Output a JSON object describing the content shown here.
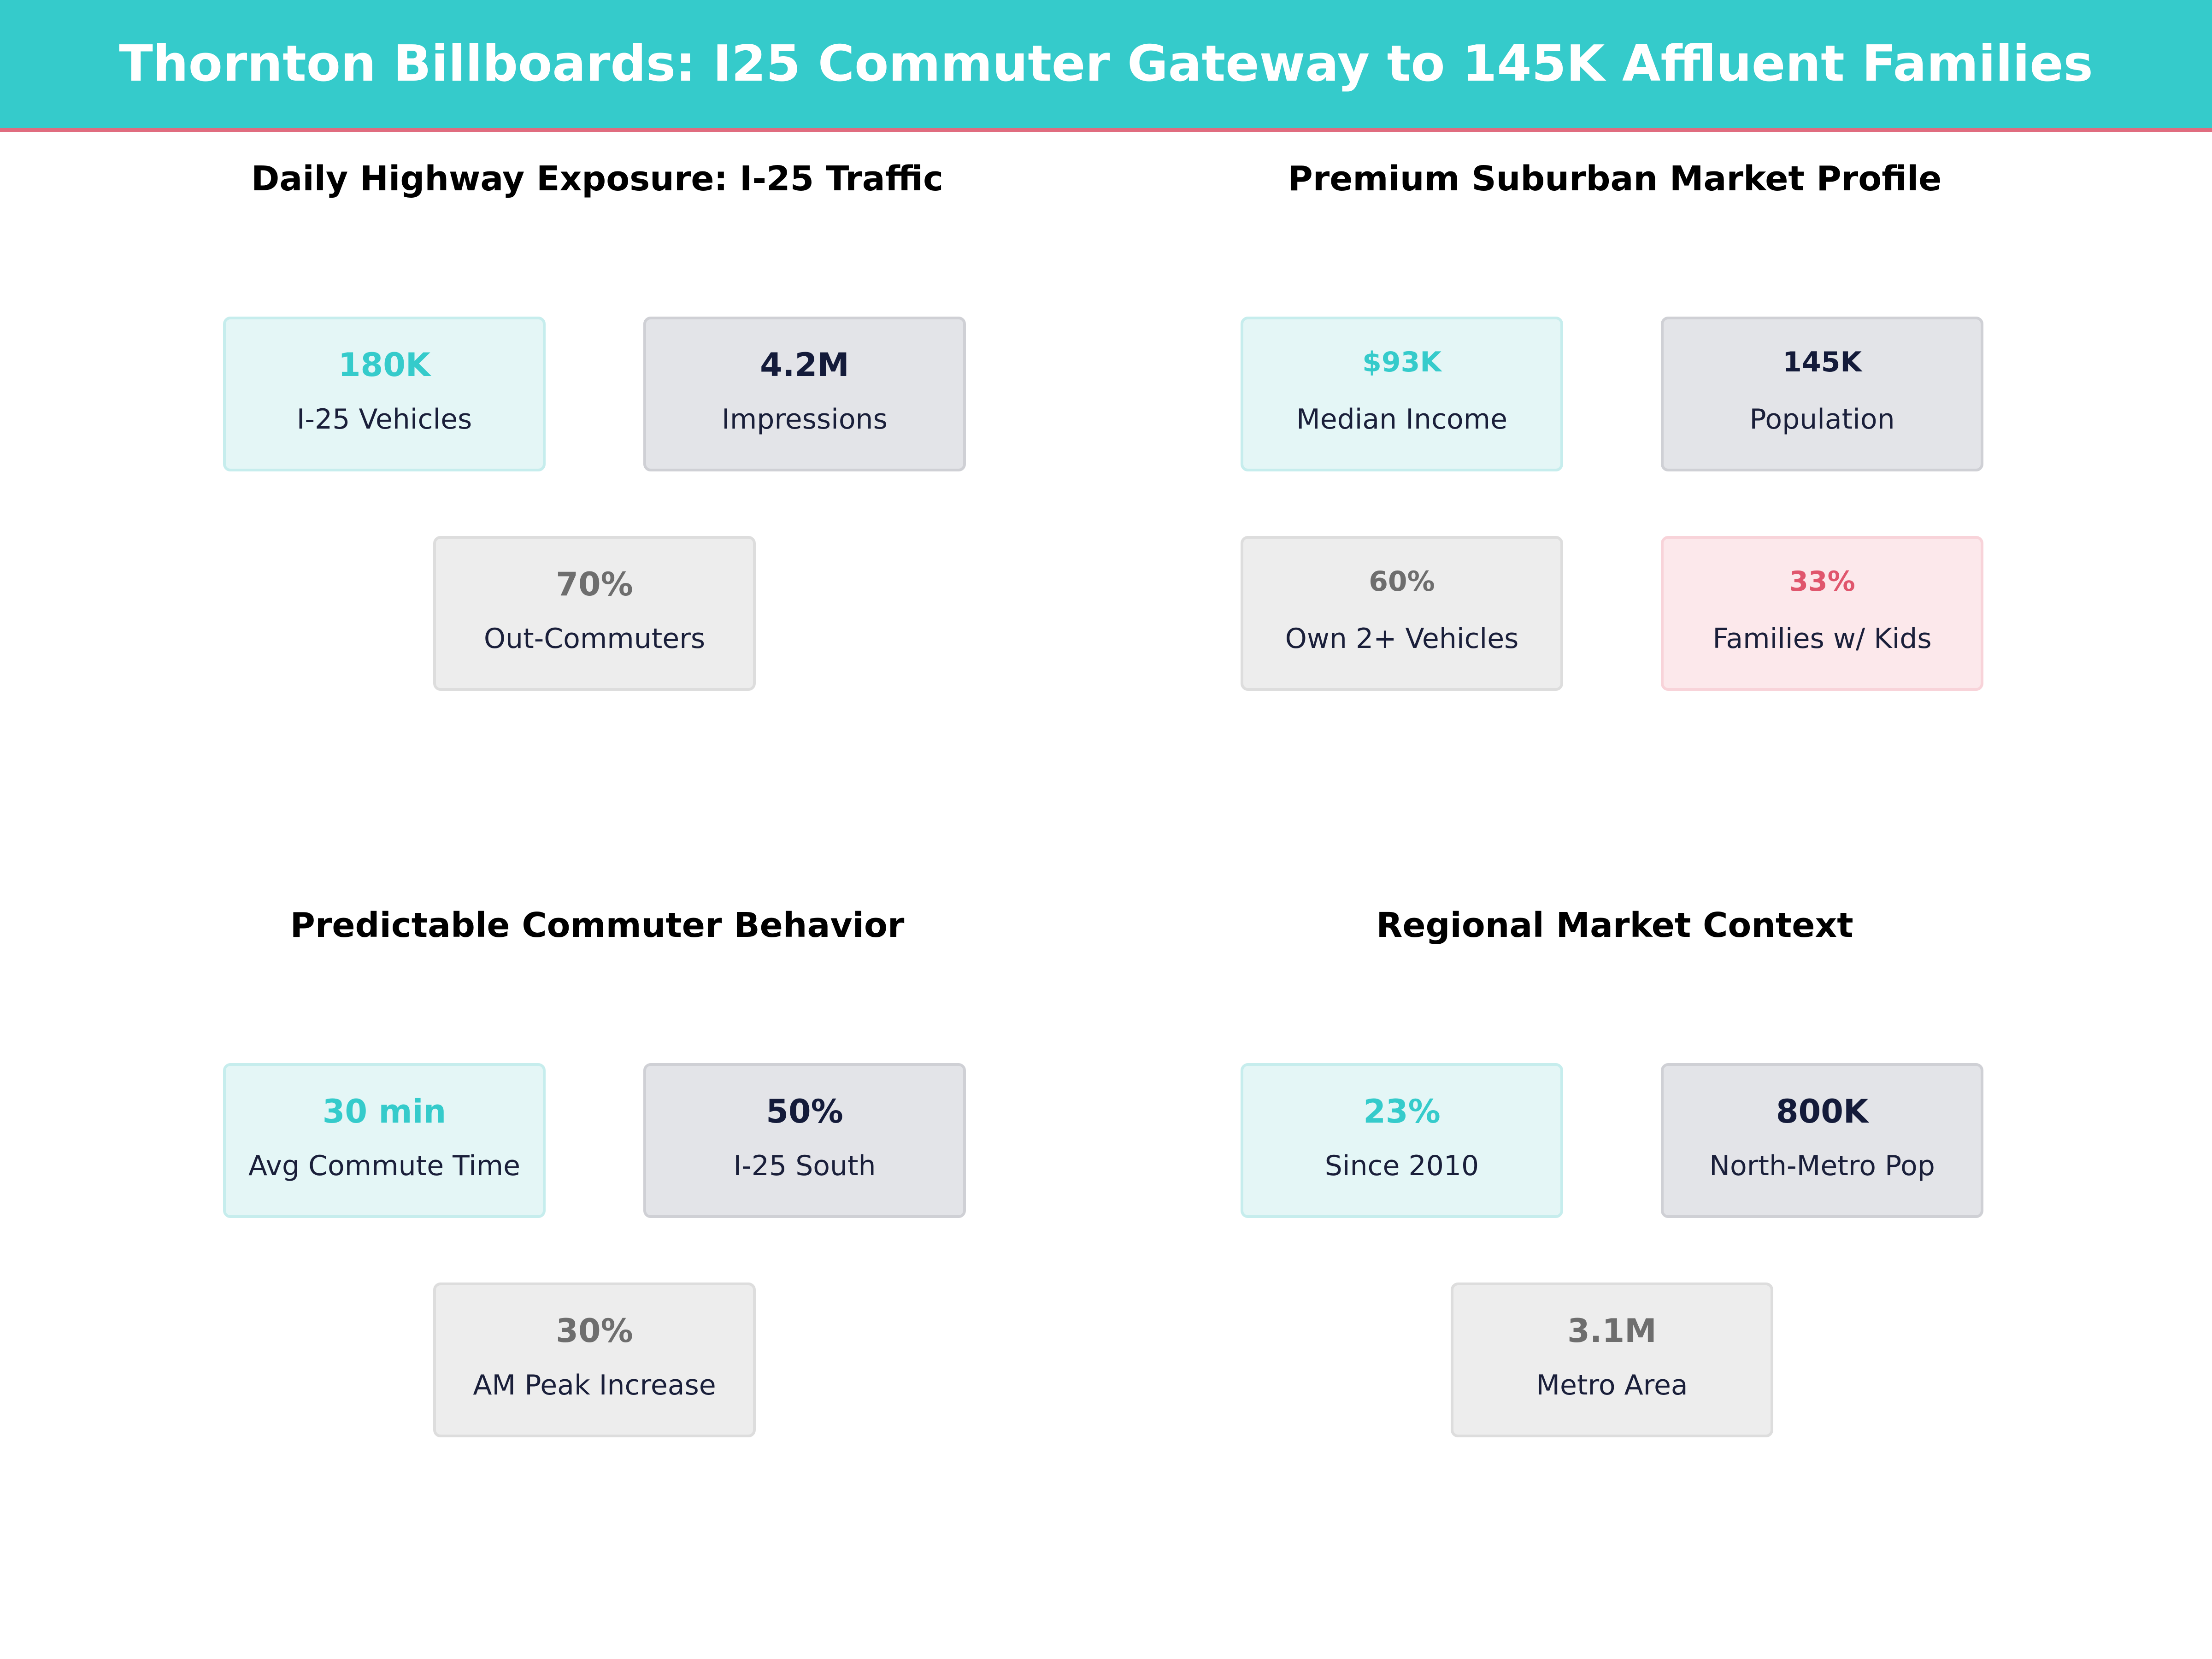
{
  "header": {
    "title": "Thornton Billboards: I25 Commuter Gateway to 145K Affluent Families"
  },
  "panels": {
    "traffic": {
      "title": "Daily Highway Exposure: I-25 Traffic",
      "cards": [
        {
          "value": "180K",
          "label": "I-25 Vehicles"
        },
        {
          "value": "4.2M",
          "label": "Impressions"
        },
        {
          "value": "70%",
          "label": "Out-Commuters"
        }
      ]
    },
    "market": {
      "title": "Premium Suburban Market Profile",
      "cards": [
        {
          "value": "$93K",
          "label": "Median Income"
        },
        {
          "value": "145K",
          "label": "Population"
        },
        {
          "value": "60%",
          "label": "Own 2+ Vehicles"
        },
        {
          "value": "33%",
          "label": "Families w/ Kids"
        }
      ]
    },
    "behavior": {
      "title": "Predictable Commuter Behavior",
      "cards": [
        {
          "value": "30 min",
          "label": "Avg Commute Time"
        },
        {
          "value": "50%",
          "label": "I-25 South"
        },
        {
          "value": "30%",
          "label": "AM Peak Increase"
        }
      ]
    },
    "regional": {
      "title": "Regional Market Context",
      "cards": [
        {
          "value": "23%",
          "label": "Since 2010"
        },
        {
          "value": "800K",
          "label": "North-Metro Pop"
        },
        {
          "value": "3.1M",
          "label": "Metro Area"
        }
      ]
    }
  },
  "colors": {
    "accent": "#35cbcb",
    "navy": "#141b3a",
    "gray": "#6e6e6e",
    "pink": "#e0566d"
  }
}
